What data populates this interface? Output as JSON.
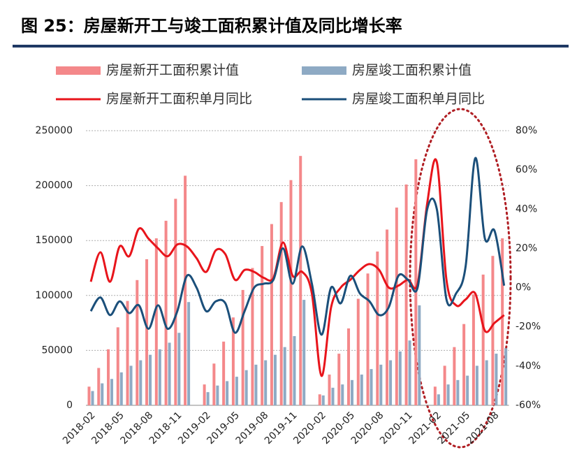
{
  "chart_data": {
    "type": "bar-line",
    "title": "图 25：房屋新开工与竣工面积累计值及同比增长率",
    "categories": [
      "2018-02",
      null,
      null,
      "2018-05",
      null,
      null,
      "2018-08",
      null,
      null,
      "2018-11",
      null,
      null,
      "2019-02",
      null,
      null,
      "2019-05",
      null,
      null,
      "2019-08",
      null,
      null,
      "2019-11",
      null,
      null,
      "2020-02",
      null,
      null,
      "2020-05",
      null,
      null,
      "2020-08",
      null,
      null,
      "2020-11",
      null,
      null,
      "2021-02",
      null,
      null,
      "2021-05",
      null,
      null,
      "2021-08",
      null
    ],
    "series": [
      {
        "name": "房屋新开工面积累计值",
        "kind": "bar",
        "color": "#f4888a",
        "values": [
          17000,
          34000,
          51000,
          71000,
          95000,
          114000,
          133000,
          152000,
          168000,
          188000,
          209000,
          null,
          19000,
          38000,
          58000,
          80000,
          105000,
          125000,
          145000,
          165000,
          185000,
          205000,
          227000,
          null,
          10000,
          28000,
          47000,
          70000,
          97000,
          120000,
          140000,
          160000,
          180000,
          201000,
          224000,
          null,
          17000,
          36000,
          53000,
          74000,
          101000,
          119000,
          136000,
          152000
        ]
      },
      {
        "name": "房屋竣工面积累计值",
        "kind": "bar",
        "color": "#8eaac4",
        "values": [
          13000,
          20000,
          24000,
          30000,
          36000,
          41000,
          46000,
          51000,
          57000,
          66000,
          94000,
          null,
          12000,
          18000,
          22000,
          26000,
          32000,
          37000,
          41000,
          46000,
          53000,
          63000,
          96000,
          null,
          9000,
          16000,
          19000,
          23000,
          28000,
          33000,
          37000,
          41000,
          49000,
          59000,
          91000,
          null,
          10000,
          19000,
          23000,
          27000,
          36000,
          41000,
          47000,
          52000
        ]
      },
      {
        "name": "房屋新开工面积单月同比",
        "kind": "line",
        "axis": "y2",
        "color": "#e8141b",
        "values": [
          3,
          18,
          3,
          21,
          16,
          30,
          25,
          20,
          16,
          22,
          21,
          15,
          8,
          19,
          17,
          4,
          9,
          8,
          5,
          5,
          23,
          6,
          8,
          -3,
          -45,
          -10,
          0,
          4,
          9,
          12,
          9,
          0,
          1,
          4,
          2,
          43,
          64,
          4,
          -9,
          -6,
          -3,
          -22,
          -18,
          -14
        ]
      },
      {
        "name": "房屋竣工面积单月同比",
        "kind": "line",
        "axis": "y2",
        "color": "#1b4f7a",
        "values": [
          -12,
          -5,
          -14,
          -7,
          -13,
          -9,
          -21,
          -9,
          -21,
          -12,
          6,
          0,
          -12,
          -7,
          -8,
          -23,
          -12,
          0,
          2,
          4,
          20,
          2,
          21,
          2,
          -24,
          0,
          -8,
          6,
          -3,
          -7,
          -14,
          -10,
          6,
          4,
          0,
          40,
          40,
          -6,
          -3,
          11,
          66,
          25,
          29,
          1
        ]
      }
    ],
    "ylim": [
      0,
      250000
    ],
    "yticks": [
      0,
      50000,
      100000,
      150000,
      200000,
      250000
    ],
    "y2lim": [
      -60,
      80
    ],
    "y2ticks": [
      {
        "value": -60,
        "label": "-60%"
      },
      {
        "value": -40,
        "label": "-40%"
      },
      {
        "value": -20,
        "label": "-20%"
      },
      {
        "value": 0,
        "label": "0%"
      },
      {
        "value": 20,
        "label": "20%"
      },
      {
        "value": 40,
        "label": "40%"
      },
      {
        "value": 60,
        "label": "60%"
      },
      {
        "value": 80,
        "label": "80%"
      }
    ],
    "grid": true
  }
}
